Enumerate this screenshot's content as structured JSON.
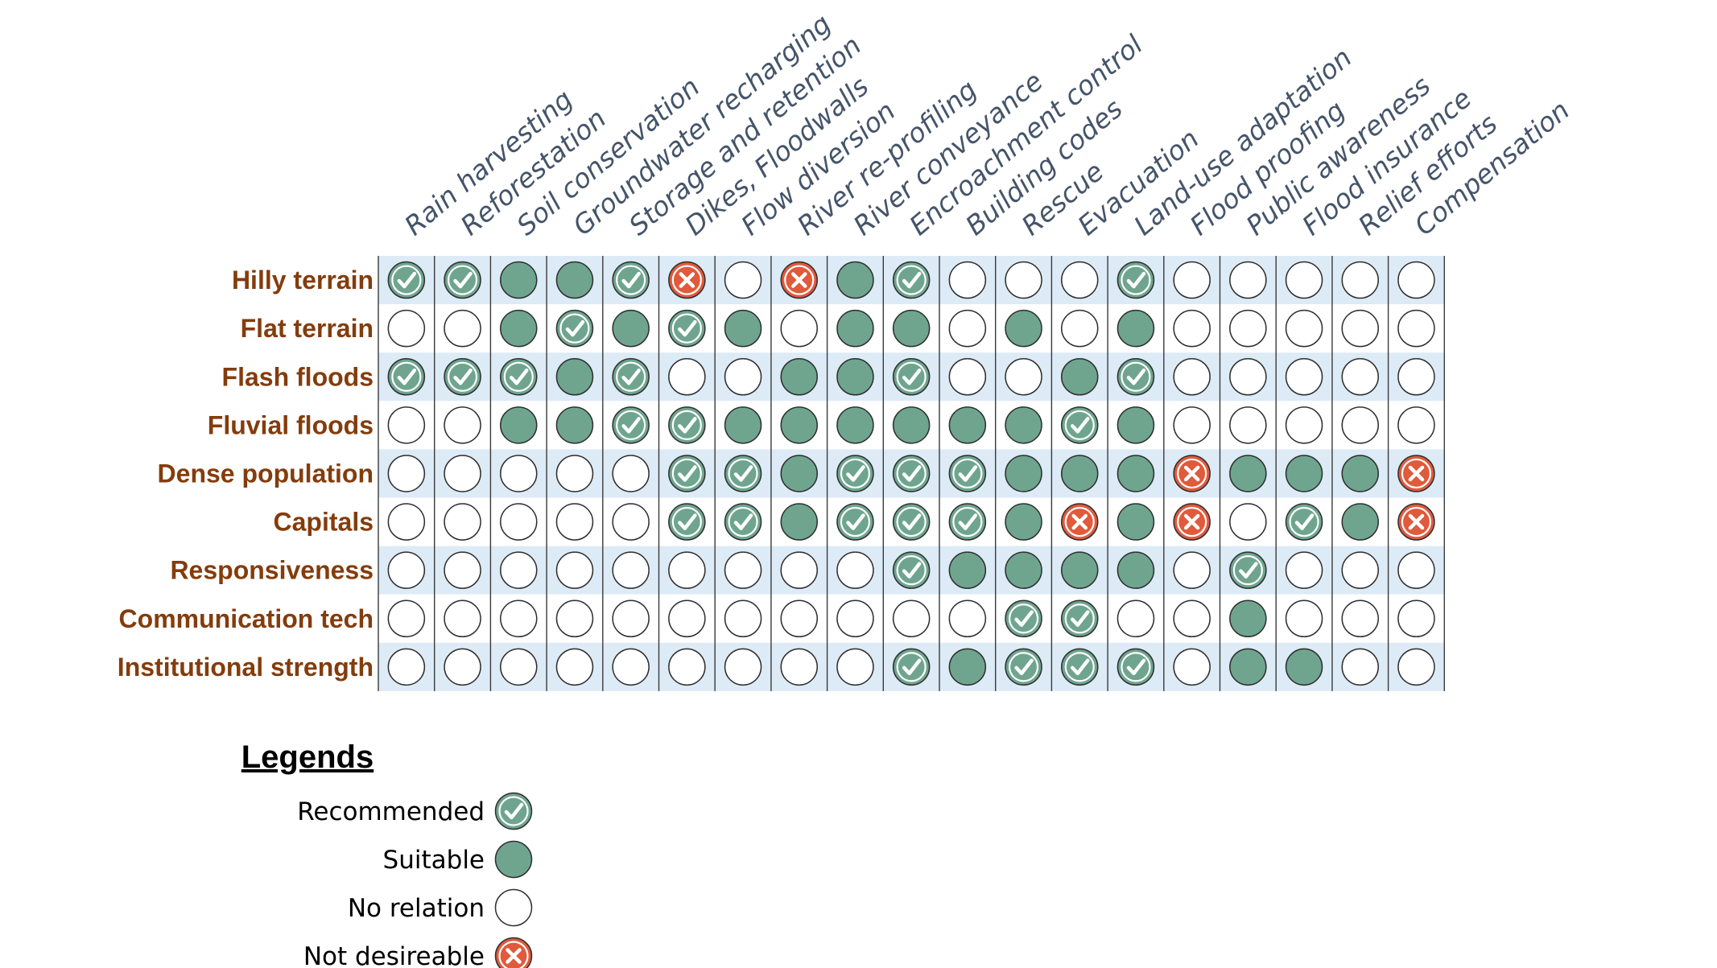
{
  "columns": [
    "Rain harvesting",
    "Reforestation",
    "Soil conservation",
    "Groundwater recharging",
    "Storage and retention",
    "Dikes, Floodwalls",
    "Flow diversion",
    "River re-profiling",
    "River conveyance",
    "Encroachment control",
    "Building codes",
    "Rescue",
    "Evacuation",
    "Land-use adaptation",
    "Flood proofing",
    "Public awareness",
    "Flood insurance",
    "Relief efforts",
    "Compensation"
  ],
  "rows": [
    {
      "label": "Hilly terrain",
      "cells": [
        "R",
        "R",
        "S",
        "S",
        "R",
        "X",
        "N",
        "X",
        "S",
        "R",
        "N",
        "N",
        "N",
        "R",
        "N",
        "N",
        "N",
        "N",
        "N"
      ]
    },
    {
      "label": "Flat terrain",
      "cells": [
        "N",
        "N",
        "S",
        "R",
        "S",
        "R",
        "S",
        "N",
        "S",
        "S",
        "N",
        "S",
        "N",
        "S",
        "N",
        "N",
        "N",
        "N",
        "N"
      ]
    },
    {
      "label": "Flash floods",
      "cells": [
        "R",
        "R",
        "R",
        "S",
        "R",
        "N",
        "N",
        "S",
        "S",
        "R",
        "N",
        "N",
        "S",
        "R",
        "N",
        "N",
        "N",
        "N",
        "N"
      ]
    },
    {
      "label": "Fluvial floods",
      "cells": [
        "N",
        "N",
        "S",
        "S",
        "R",
        "R",
        "S",
        "S",
        "S",
        "S",
        "S",
        "S",
        "R",
        "S",
        "N",
        "N",
        "N",
        "N",
        "N"
      ]
    },
    {
      "label": "Dense population",
      "cells": [
        "N",
        "N",
        "N",
        "N",
        "N",
        "R",
        "R",
        "S",
        "R",
        "R",
        "R",
        "S",
        "S",
        "S",
        "X",
        "S",
        "S",
        "S",
        "X"
      ]
    },
    {
      "label": "Capitals",
      "cells": [
        "N",
        "N",
        "N",
        "N",
        "N",
        "R",
        "R",
        "S",
        "R",
        "R",
        "R",
        "S",
        "X",
        "S",
        "X",
        "N",
        "R",
        "S",
        "X"
      ]
    },
    {
      "label": "Responsiveness",
      "cells": [
        "N",
        "N",
        "N",
        "N",
        "N",
        "N",
        "N",
        "N",
        "N",
        "R",
        "S",
        "S",
        "S",
        "S",
        "N",
        "R",
        "N",
        "N",
        "N"
      ]
    },
    {
      "label": "Communication tech",
      "cells": [
        "N",
        "N",
        "N",
        "N",
        "N",
        "N",
        "N",
        "N",
        "N",
        "N",
        "N",
        "R",
        "R",
        "N",
        "N",
        "S",
        "N",
        "N",
        "N"
      ]
    },
    {
      "label": "Institutional strength",
      "cells": [
        "N",
        "N",
        "N",
        "N",
        "N",
        "N",
        "N",
        "N",
        "N",
        "R",
        "S",
        "R",
        "R",
        "R",
        "N",
        "S",
        "S",
        "N",
        "N"
      ]
    }
  ],
  "legend": {
    "title": "Legends",
    "items": [
      {
        "code": "R",
        "label": "Recommended"
      },
      {
        "code": "S",
        "label": "Suitable"
      },
      {
        "code": "N",
        "label": "No relation"
      },
      {
        "code": "X",
        "label": "Not desireable"
      }
    ]
  },
  "colors": {
    "recommended": "#6FA58F",
    "suitable": "#6FA58F",
    "no_relation": "#FFFFFF",
    "not_desireable": "#E05A3C",
    "row_band": "#DDEBF7",
    "row_label": "#843C0C",
    "column_label": "#44546A"
  }
}
